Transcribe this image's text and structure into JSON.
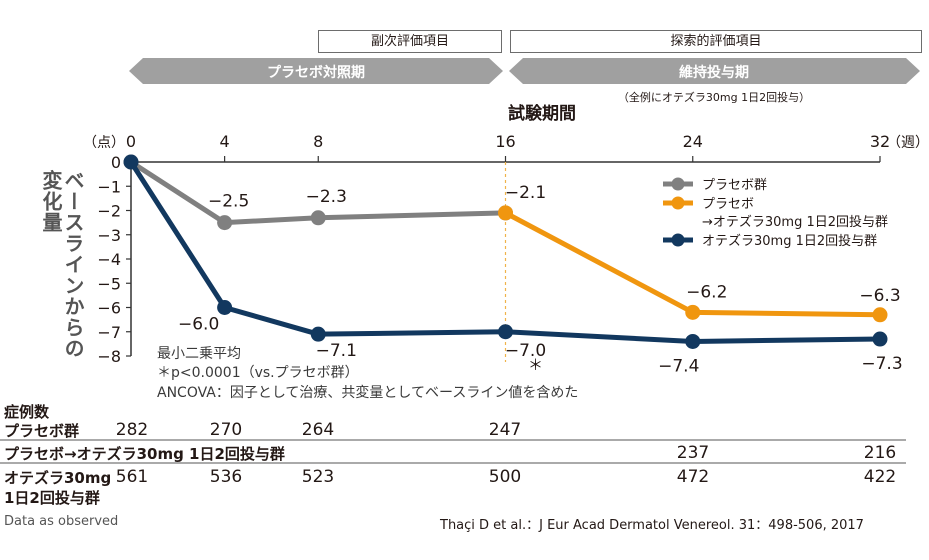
{
  "top_boxes": {
    "secondary": "副次評価項目",
    "exploratory": "探索的評価項目"
  },
  "period_arrows": {
    "placebo": "プラセボ対照期",
    "maintenance": "維持投与期",
    "maintenance_note": "（全例にオテズラ30mg 1日2回投与）"
  },
  "colors": {
    "placebo": "#808080",
    "switch": "#f0960f",
    "otezla": "#12385f",
    "arrow": "#a0a0a0",
    "dash": "#f0b34a"
  },
  "chart_data": {
    "type": "line",
    "xlabel": "試験期間",
    "x_unit": "（週）",
    "y_unit": "（点）",
    "ylabel": "ベースラインからの変化量",
    "x_ticks": [
      0,
      4,
      8,
      16,
      24,
      32
    ],
    "y_ticks": [
      0,
      -1,
      -2,
      -3,
      -4,
      -5,
      -6,
      -7,
      -8
    ],
    "ylim": [
      -8,
      0
    ],
    "xlim": [
      0,
      32
    ],
    "legend_position": "top-right",
    "series": [
      {
        "key": "placebo",
        "name": "プラセボ群",
        "x": [
          0,
          4,
          8,
          16
        ],
        "y": [
          0,
          -2.5,
          -2.3,
          -2.1
        ],
        "labels": [
          null,
          "−2.5",
          "−2.3",
          "−2.1"
        ]
      },
      {
        "key": "switch",
        "name": "プラセボ→オテズラ30mg 1日2回投与群",
        "x": [
          16,
          24,
          32
        ],
        "y": [
          -2.1,
          -6.2,
          -6.3
        ],
        "labels": [
          null,
          "−6.2",
          "−6.3"
        ]
      },
      {
        "key": "otezla",
        "name": "オテズラ30mg 1日2回投与群",
        "x": [
          0,
          4,
          8,
          16,
          24,
          32
        ],
        "y": [
          0,
          -6.0,
          -7.1,
          -7.0,
          -7.4,
          -7.3
        ],
        "labels": [
          null,
          "−6.0",
          "−7.1",
          "−7.0",
          "−7.4",
          "−7.3"
        ]
      }
    ],
    "legend": [
      {
        "key": "placebo",
        "line1": "プラセボ群",
        "line2": ""
      },
      {
        "key": "switch",
        "line1": "プラセボ",
        "line2": "→オテズラ30mg 1日2回投与群"
      },
      {
        "key": "otezla",
        "line1": "オテズラ30mg 1日2回投与群",
        "line2": ""
      }
    ],
    "significance_marker": "＊",
    "notes": [
      "最小二乗平均",
      "＊p<0.0001（vs.プラセボ群）",
      "ANCOVA：因子として治療、共変量としてベースライン値を含めた"
    ]
  },
  "table": {
    "title": "症例数",
    "rows": [
      {
        "label": "プラセボ群",
        "label2": "",
        "values": [
          "282",
          "270",
          "264",
          "247",
          "",
          ""
        ]
      },
      {
        "label": "プラセボ→オテズラ30mg 1日2回投与群",
        "label2": "",
        "values": [
          "",
          "",
          "",
          "",
          "237",
          "216"
        ]
      },
      {
        "label": "オテズラ30mg",
        "label2": "1日2回投与群",
        "values": [
          "561",
          "536",
          "523",
          "500",
          "472",
          "422"
        ]
      }
    ]
  },
  "footer": {
    "left": "Data as observed",
    "right": "Thaçi D et al.：J Eur Acad Dermatol Venereol. 31：498-506, 2017"
  }
}
